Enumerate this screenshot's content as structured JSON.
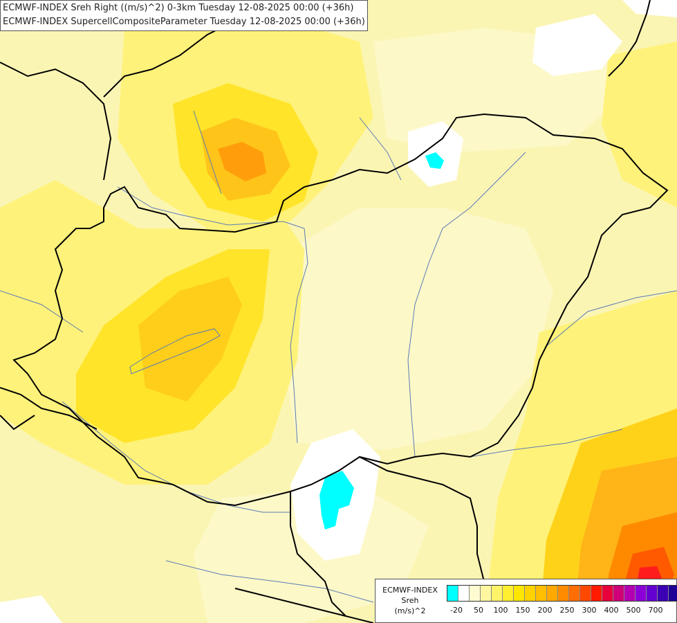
{
  "title": {
    "line1": "ECMWF-INDEX Sreh Right ((m/s)^2) 0-3km Tuesday 12-08-2025 00:00 (+36h)",
    "line2": "ECMWF-INDEX SupercellCompositeParameter Tuesday 12-08-2025 00:00 (+36h)"
  },
  "legend": {
    "line1": "ECMWF-INDEX",
    "line2": "Sreh",
    "line3": "(m/s)^2",
    "colors": [
      "#00ffff",
      "#ffffff",
      "#fffbd0",
      "#fff7a0",
      "#fff36a",
      "#ffef30",
      "#ffe600",
      "#ffd200",
      "#ffbe00",
      "#ffa800",
      "#ff8c00",
      "#ff6e00",
      "#ff4800",
      "#ff1a00",
      "#e8003c",
      "#d00078",
      "#b400b0",
      "#8c00d8",
      "#6400d0",
      "#3c00b4",
      "#1e0094",
      "#000a78"
    ],
    "ticks": [
      "-20",
      "50",
      "100",
      "150",
      "200",
      "250",
      "300",
      "400",
      "500",
      "700"
    ]
  },
  "map": {
    "background": "#fbf5b4",
    "palette": {
      "pale": "#fdf8c4",
      "light": "#fff27a",
      "yellow": "#ffea2e",
      "gold": "#ffd21a",
      "orange": "#ffb418",
      "dark_orange": "#ff8a00",
      "red_orange": "#ff5a00",
      "red": "#ff1c1c",
      "white": "#ffffff",
      "cyan": "#00ffff"
    },
    "border_color": "#000000",
    "river_color": "#5a7bb5"
  }
}
